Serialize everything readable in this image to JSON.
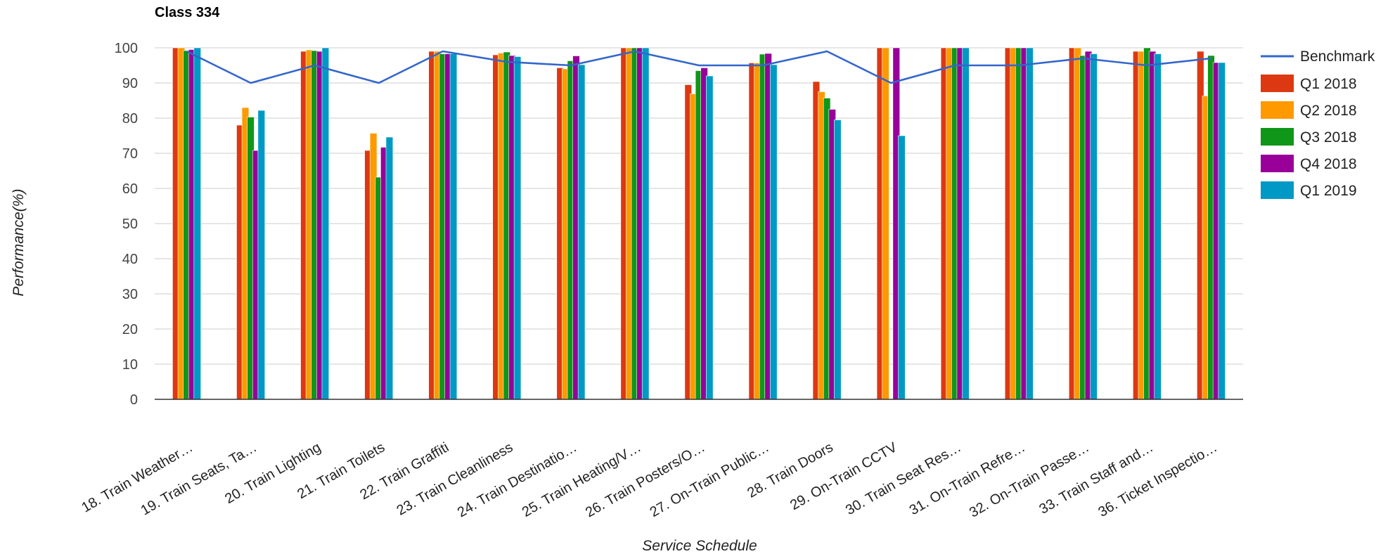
{
  "chart_data": {
    "type": "bar",
    "title": "Class 334",
    "xlabel": "Service Schedule",
    "ylabel": "Performance(%)",
    "ylim": [
      0,
      100
    ],
    "yticks": [
      0,
      10,
      20,
      30,
      40,
      50,
      60,
      70,
      80,
      90,
      100
    ],
    "grid": true,
    "legend_position": "right",
    "categories": [
      "18. Train Weather…",
      "19. Train Seats, Ta…",
      "20. Train Lighting",
      "21. Train Toilets",
      "22. Train Graffiti",
      "23. Train Cleanliness",
      "24. Train Destinatio…",
      "25. Train Heating/V…",
      "26. Train Posters/O…",
      "27. On-Train Public…",
      "28. Train Doors",
      "29. On-Train CCTV",
      "30. Train Seat Res…",
      "31. On-Train Refre…",
      "32. On-Train Passe…",
      "33. Train Staff and…",
      "36. Ticket Inspectio…"
    ],
    "series": [
      {
        "name": "Q1 2018",
        "color": "#dc3912",
        "values": [
          100,
          78,
          99,
          70.8,
          99,
          98,
          94.3,
          100,
          89.5,
          95.7,
          90.4,
          100,
          100,
          100,
          100,
          99,
          99
        ]
      },
      {
        "name": "Q2 2018",
        "color": "#ff9900",
        "values": [
          100,
          83,
          99.4,
          75.7,
          99,
          98.5,
          94,
          100,
          86.9,
          95.7,
          87.5,
          100,
          100,
          100,
          100,
          99,
          86.3
        ]
      },
      {
        "name": "Q3 2018",
        "color": "#109618",
        "values": [
          99.2,
          80.3,
          99.2,
          63.2,
          98.3,
          98.8,
          96.3,
          100,
          93.5,
          98.2,
          85.7,
          null,
          100,
          100,
          97.8,
          100,
          97.8
        ]
      },
      {
        "name": "Q4 2018",
        "color": "#990099",
        "values": [
          99.5,
          70.8,
          99,
          71.7,
          98.3,
          97.8,
          97.7,
          100,
          94.3,
          98.4,
          82.5,
          100,
          100,
          100,
          99,
          99,
          95.8
        ]
      },
      {
        "name": "Q1 2019",
        "color": "#0099c6",
        "values": [
          100,
          82.2,
          100,
          74.6,
          98.3,
          97.5,
          95.2,
          100,
          92,
          95.2,
          79.5,
          75,
          100,
          100,
          98.3,
          98.3,
          95.8
        ]
      }
    ],
    "benchmark": {
      "name": "Benchmark",
      "color": "#3366cc",
      "values": [
        99,
        90,
        95,
        90,
        99,
        96,
        95,
        99,
        95,
        95,
        99,
        90,
        95,
        95,
        97,
        95,
        97
      ]
    }
  }
}
